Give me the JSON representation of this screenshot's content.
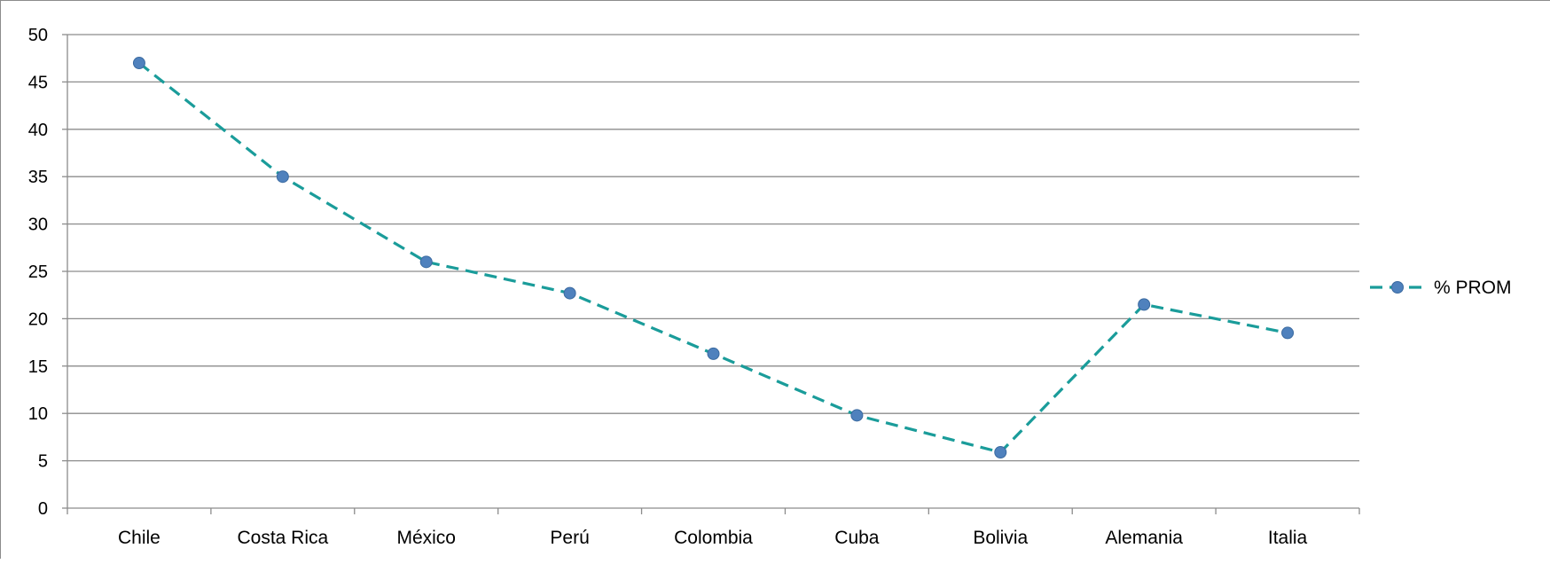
{
  "chart_data": {
    "type": "line",
    "categories": [
      "Chile",
      "Costa Rica",
      "México",
      "Perú",
      "Colombia",
      "Cuba",
      "Bolivia",
      "Alemania",
      "Italia"
    ],
    "series": [
      {
        "name": "% PROM",
        "values": [
          47,
          35,
          26,
          22.7,
          16.3,
          9.8,
          5.9,
          21.5,
          18.5
        ],
        "line_color": "#1A9C9A",
        "marker_color": "#4F81BD",
        "line_style": "dashed"
      }
    ],
    "y_ticks": [
      0,
      5,
      10,
      15,
      20,
      25,
      30,
      35,
      40,
      45,
      50
    ],
    "ylim": [
      0,
      50
    ],
    "grid": true,
    "legend_position": "right"
  }
}
